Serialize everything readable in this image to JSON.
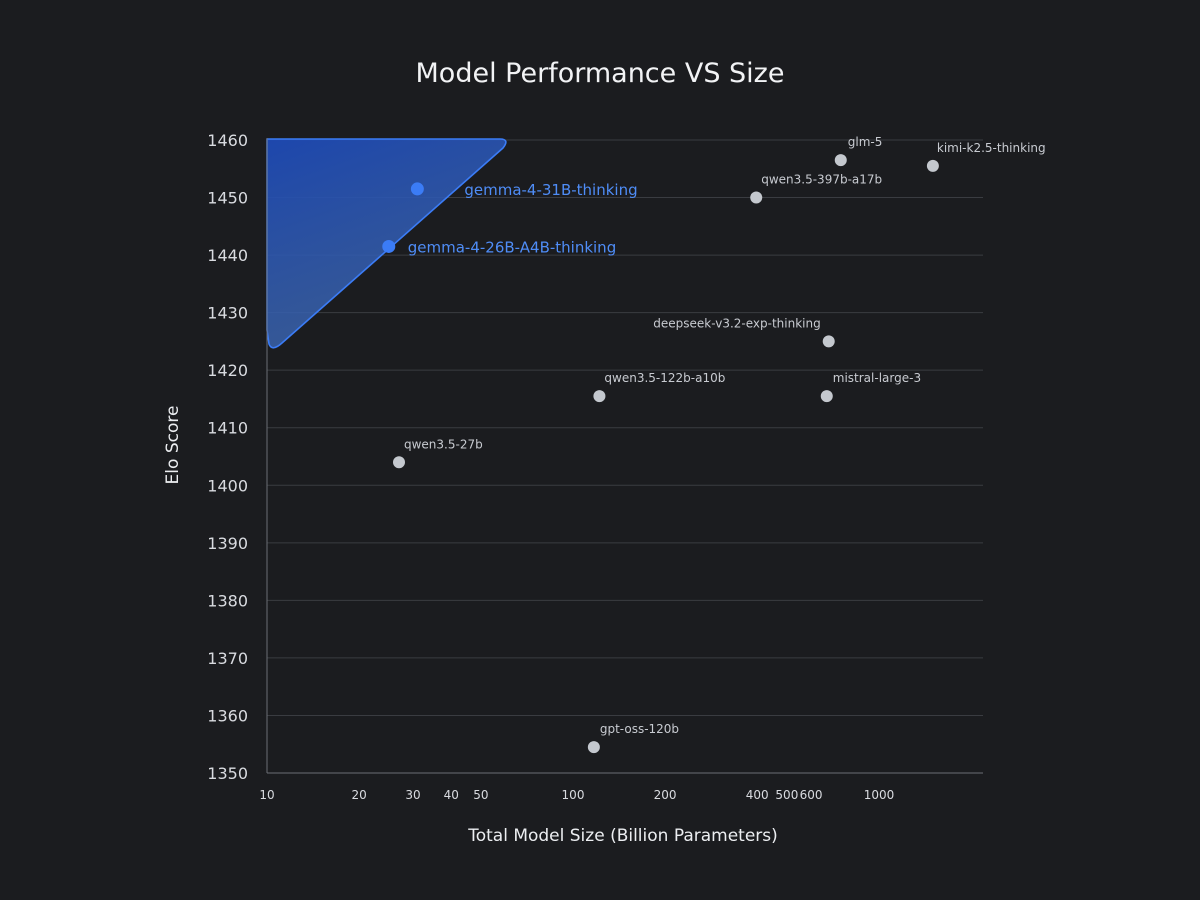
{
  "chart_data": {
    "type": "scatter",
    "title": "Model Performance VS Size",
    "xlabel": "Total Model Size (Billion Parameters)",
    "ylabel": "Elo Score",
    "xscale": "log",
    "xlim": [
      10,
      2000
    ],
    "ylim": [
      1350,
      1460
    ],
    "xticks": [
      10,
      20,
      30,
      40,
      50,
      100,
      200,
      400,
      500,
      600,
      1000
    ],
    "xtick_labels": [
      "10",
      "20",
      "30",
      "40",
      "50",
      "100",
      "200",
      "400",
      "500",
      "600",
      "1000"
    ],
    "yticks": [
      1350,
      1360,
      1370,
      1380,
      1390,
      1400,
      1410,
      1420,
      1430,
      1440,
      1450,
      1460
    ],
    "ytick_labels": [
      "1350",
      "1360",
      "1370",
      "1380",
      "1390",
      "1400",
      "1410",
      "1420",
      "1430",
      "1440",
      "1450",
      "1460"
    ],
    "grid": "horizontal",
    "highlight_color": "#3b7cf6",
    "point_color": "#c4c8ce",
    "points": [
      {
        "label": "gemma-4-31B-thinking",
        "x": 31,
        "y": 1451.5,
        "highlight": true
      },
      {
        "label": "gemma-4-26B-A4B-thinking",
        "x": 25,
        "y": 1441.5,
        "highlight": true
      },
      {
        "label": "glm-5",
        "x": 750,
        "y": 1456.5,
        "highlight": false
      },
      {
        "label": "kimi-k2.5-thinking",
        "x": 1500,
        "y": 1455.5,
        "highlight": false
      },
      {
        "label": "qwen3.5-397b-a17b",
        "x": 397,
        "y": 1450,
        "highlight": false
      },
      {
        "label": "deepseek-v3.2-exp-thinking",
        "x": 685,
        "y": 1425,
        "highlight": false
      },
      {
        "label": "qwen3.5-122b-a10b",
        "x": 122,
        "y": 1415.5,
        "highlight": false
      },
      {
        "label": "mistral-large-3",
        "x": 675,
        "y": 1415.5,
        "highlight": false
      },
      {
        "label": "qwen3.5-27b",
        "x": 27,
        "y": 1404,
        "highlight": false
      },
      {
        "label": "gpt-oss-120b",
        "x": 117,
        "y": 1354.5,
        "highlight": false
      }
    ]
  }
}
